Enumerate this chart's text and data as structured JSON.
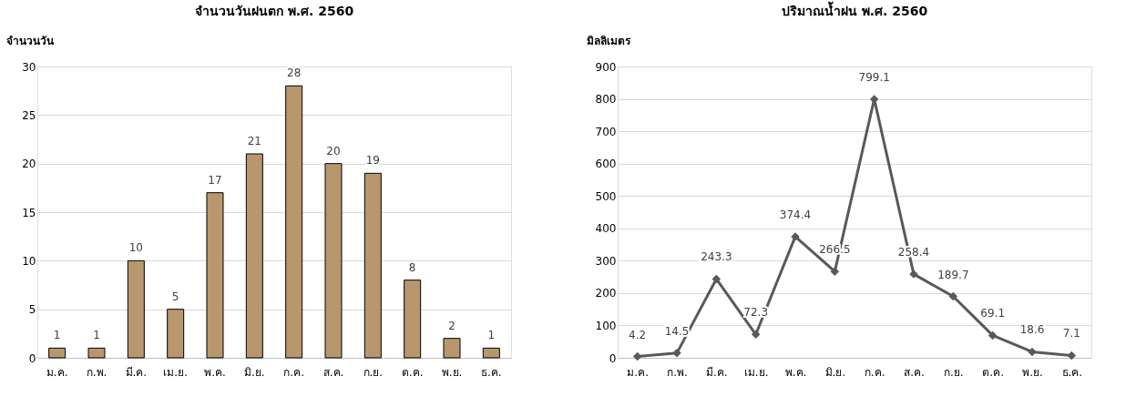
{
  "chart_data": [
    {
      "type": "bar",
      "title": "จำนวนวันฝนตก พ.ศ. 2560",
      "ylabel": "จำนวนวัน",
      "categories": [
        "ม.ค.",
        "ก.พ.",
        "มี.ค.",
        "เม.ย.",
        "พ.ค.",
        "มิ.ย.",
        "ก.ค.",
        "ส.ค.",
        "ก.ย.",
        "ต.ค.",
        "พ.ย.",
        "ธ.ค."
      ],
      "values": [
        1,
        1,
        10,
        5,
        17,
        21,
        28,
        20,
        19,
        8,
        2,
        1
      ],
      "color": "#b8976f",
      "ylim": [
        0,
        30
      ],
      "yticks": [
        0,
        5,
        10,
        15,
        20,
        25,
        30
      ],
      "grid": "y",
      "data_labels": true
    },
    {
      "type": "line",
      "title": "ปริมาณน้ำฝน พ.ศ. 2560",
      "ylabel": "มิลลิเมตร",
      "categories": [
        "ม.ค.",
        "ก.พ.",
        "มี.ค.",
        "เม.ย.",
        "พ.ค.",
        "มิ.ย.",
        "ก.ค.",
        "ส.ค.",
        "ก.ย.",
        "ต.ค.",
        "พ.ย.",
        "ธ.ค."
      ],
      "values": [
        4.2,
        14.5,
        243.3,
        72.3,
        374.4,
        266.5,
        799.1,
        258.4,
        189.7,
        69.1,
        18.6,
        7.1
      ],
      "color": "#595959",
      "marker": "diamond",
      "line_style": "solid",
      "ylim": [
        0,
        900
      ],
      "yticks": [
        0,
        100,
        200,
        300,
        400,
        500,
        600,
        700,
        800,
        900
      ],
      "grid": "y",
      "data_labels": true
    }
  ]
}
